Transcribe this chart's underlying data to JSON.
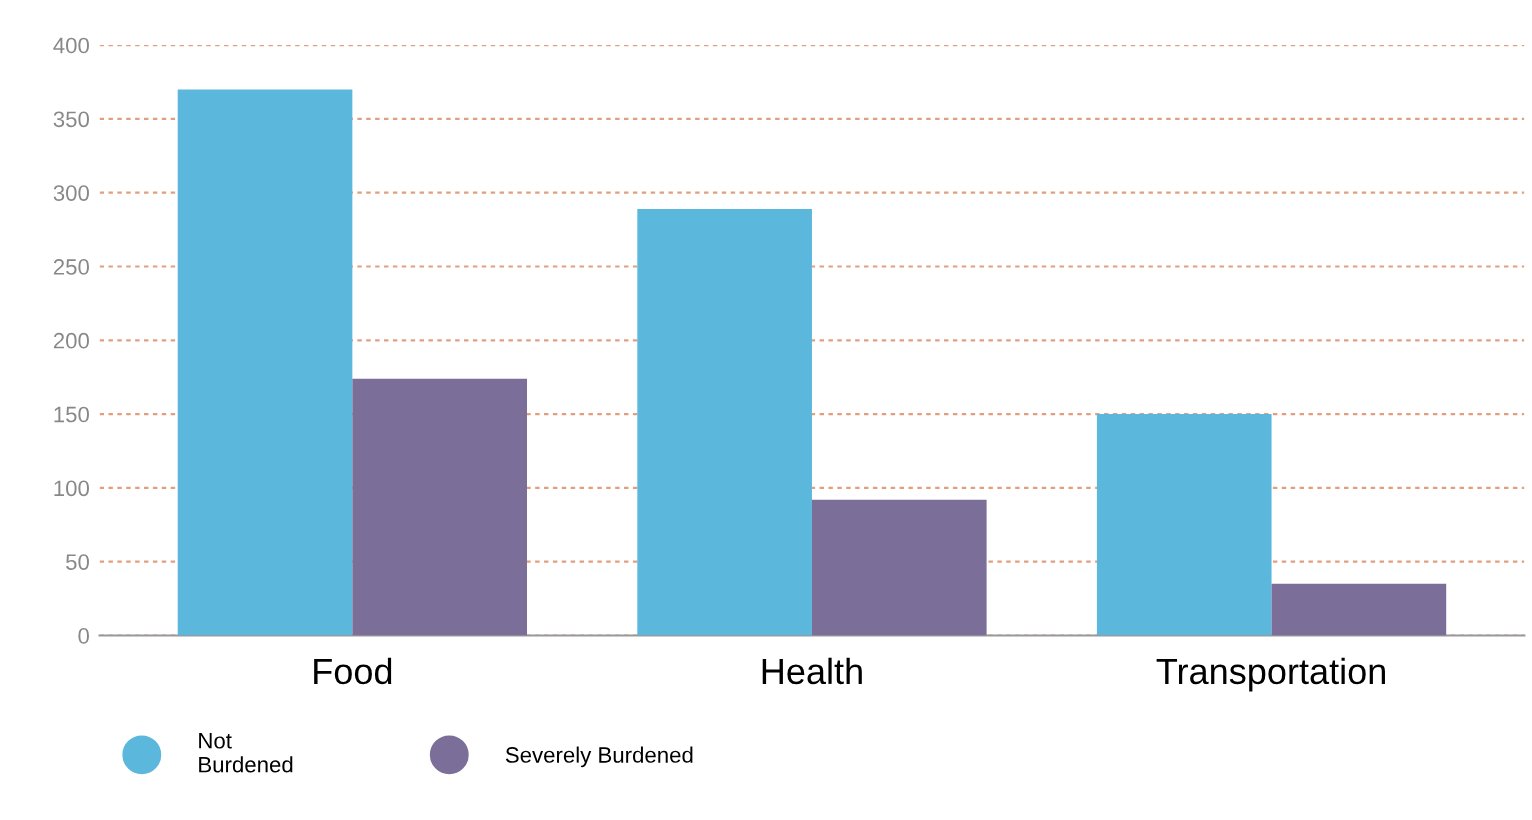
{
  "chart_data": {
    "type": "bar",
    "categories": [
      "Food",
      "Health",
      "Transportation"
    ],
    "series": [
      {
        "name": "Not\nBurdened",
        "color": "#5bb8dc",
        "values": [
          370,
          289,
          150
        ]
      },
      {
        "name": "Severely Burdened",
        "color": "#7b6f9a",
        "values": [
          174,
          92,
          35
        ]
      }
    ],
    "ylim": [
      0,
      400
    ],
    "yticks": [
      0,
      50,
      100,
      150,
      200,
      250,
      300,
      350,
      400
    ],
    "grid": "y",
    "legend": "bottom left"
  }
}
